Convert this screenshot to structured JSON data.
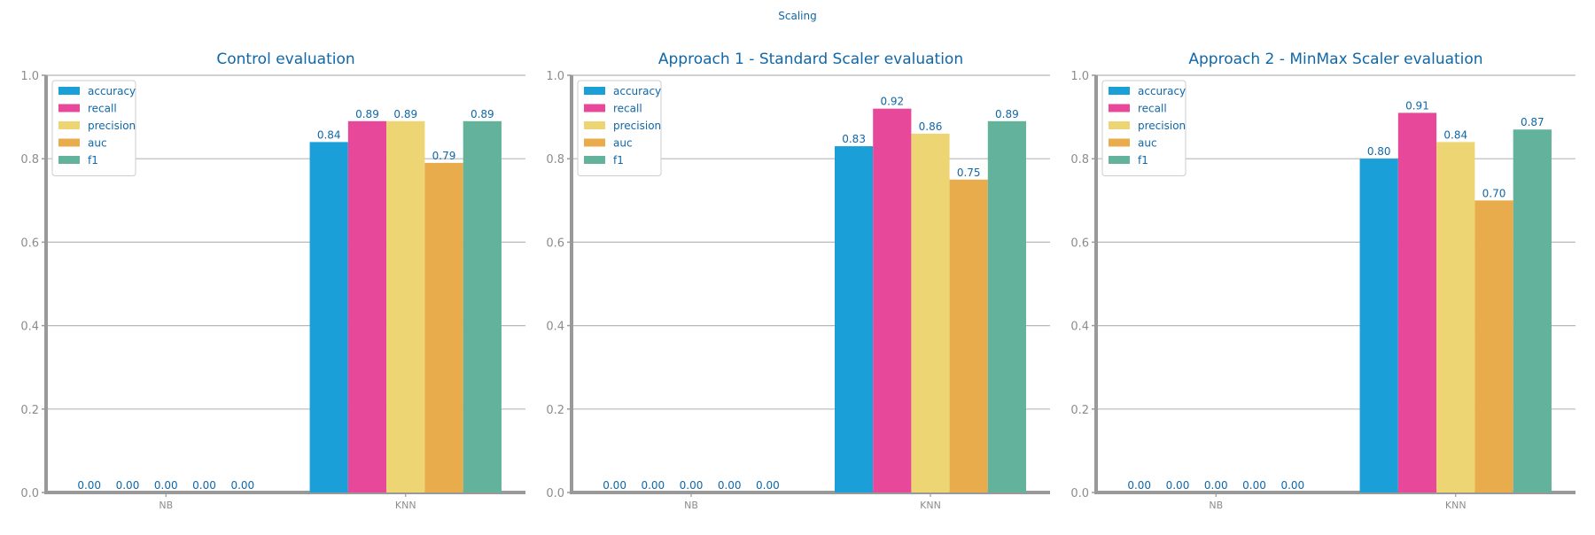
{
  "figure": {
    "title": "Scaling"
  },
  "colors": {
    "accuracy": "#1a9fd8",
    "recall": "#e8489a",
    "precision": "#edd574",
    "auc": "#e8ac4d",
    "f1": "#63b39c",
    "title": "#1067a8",
    "tick_label": "#8c8c8c",
    "axis": "#999999",
    "grid": "#b8b8b8"
  },
  "chart_data": [
    {
      "type": "bar",
      "title": "Control evaluation",
      "categories": [
        "NB",
        "KNN"
      ],
      "series": [
        {
          "name": "accuracy",
          "values": [
            0.0,
            0.84
          ]
        },
        {
          "name": "recall",
          "values": [
            0.0,
            0.89
          ]
        },
        {
          "name": "precision",
          "values": [
            0.0,
            0.89
          ]
        },
        {
          "name": "auc",
          "values": [
            0.0,
            0.79
          ]
        },
        {
          "name": "f1",
          "values": [
            0.0,
            0.89
          ]
        }
      ],
      "ylim": [
        0,
        1.0
      ],
      "yticks": [
        "0.0",
        "0.2",
        "0.4",
        "0.6",
        "0.8",
        "1.0"
      ],
      "grid": true,
      "legend": "top-left",
      "xlabel": "",
      "ylabel": ""
    },
    {
      "type": "bar",
      "title": "Approach 1 - Standard Scaler evaluation",
      "categories": [
        "NB",
        "KNN"
      ],
      "series": [
        {
          "name": "accuracy",
          "values": [
            0.0,
            0.83
          ]
        },
        {
          "name": "recall",
          "values": [
            0.0,
            0.92
          ]
        },
        {
          "name": "precision",
          "values": [
            0.0,
            0.86
          ]
        },
        {
          "name": "auc",
          "values": [
            0.0,
            0.75
          ]
        },
        {
          "name": "f1",
          "values": [
            0.0,
            0.89
          ]
        }
      ],
      "ylim": [
        0,
        1.0
      ],
      "yticks": [
        "0.0",
        "0.2",
        "0.4",
        "0.6",
        "0.8",
        "1.0"
      ],
      "grid": true,
      "legend": "top-left",
      "xlabel": "",
      "ylabel": ""
    },
    {
      "type": "bar",
      "title": "Approach 2 - MinMax Scaler evaluation",
      "categories": [
        "NB",
        "KNN"
      ],
      "series": [
        {
          "name": "accuracy",
          "values": [
            0.0,
            0.8
          ]
        },
        {
          "name": "recall",
          "values": [
            0.0,
            0.91
          ]
        },
        {
          "name": "precision",
          "values": [
            0.0,
            0.84
          ]
        },
        {
          "name": "auc",
          "values": [
            0.0,
            0.7
          ]
        },
        {
          "name": "f1",
          "values": [
            0.0,
            0.87
          ]
        }
      ],
      "ylim": [
        0,
        1.0
      ],
      "yticks": [
        "0.0",
        "0.2",
        "0.4",
        "0.6",
        "0.8",
        "1.0"
      ],
      "grid": true,
      "legend": "top-left",
      "xlabel": "",
      "ylabel": ""
    }
  ]
}
